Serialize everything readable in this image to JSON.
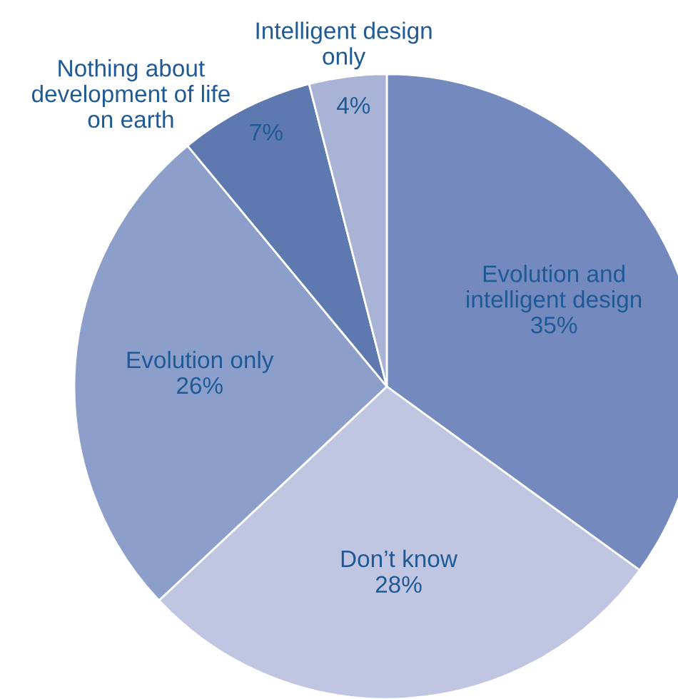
{
  "chart_data": {
    "type": "pie",
    "categories": [
      "Evolution and intelligent design",
      "Don’t know",
      "Evolution only",
      "Nothing about development of life on earth",
      "Intelligent design only"
    ],
    "values": [
      35,
      28,
      26,
      7,
      4
    ],
    "colors": [
      "#7489bd",
      "#c0c6e2",
      "#8c9fca",
      "#5e78b0",
      "#a9b3d6"
    ],
    "value_labels": [
      "35%",
      "28%",
      "26%",
      "7%",
      "4%"
    ]
  }
}
